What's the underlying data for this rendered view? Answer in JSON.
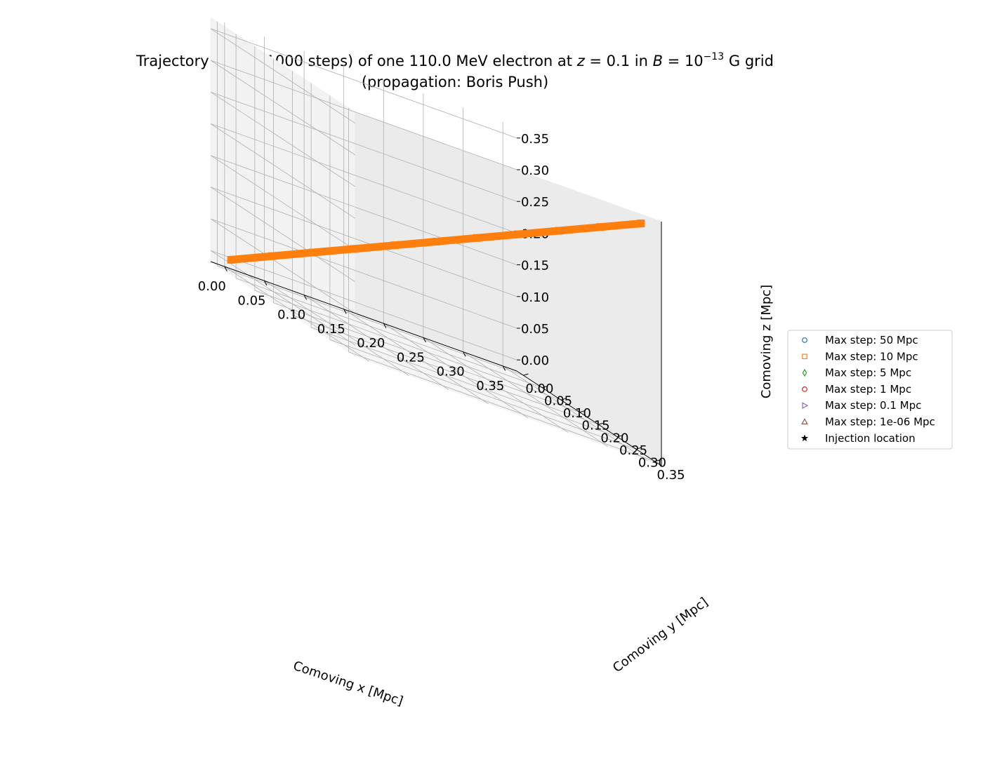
{
  "chart_data": {
    "type": "line",
    "projection": "3d",
    "title_parts": {
      "pre": "Trajectory (every 1000 steps) of one 110.0 MeV electron at ",
      "z_var": "z",
      "z_eq": " = 0.1 in ",
      "b_var": "B",
      "b_eq": " = 10",
      "b_exp": "−13",
      "post": " G grid"
    },
    "subtitle": "(propagation: Boris Push)",
    "xlabel": "Comoving x [Mpc]",
    "ylabel": "Comoving y [Mpc]",
    "zlabel": "Comoving z [Mpc]",
    "xlim": [
      -0.0175,
      0.3675
    ],
    "ylim": [
      -0.0175,
      0.3675
    ],
    "zlim": [
      -0.0175,
      0.3675
    ],
    "x_ticks": [
      "0.00",
      "0.05",
      "0.10",
      "0.15",
      "0.20",
      "0.25",
      "0.30",
      "0.35"
    ],
    "y_ticks": [
      "0.00",
      "0.05",
      "0.10",
      "0.15",
      "0.20",
      "0.25",
      "0.30",
      "0.35"
    ],
    "z_ticks": [
      "0.00",
      "0.05",
      "0.10",
      "0.15",
      "0.20",
      "0.25",
      "0.30",
      "0.35"
    ],
    "grid": true,
    "legend_position": "center-right",
    "series": [
      {
        "name": "Max step: 50 Mpc",
        "color": "#1f77b4",
        "marker": "circle",
        "x": [],
        "y": [],
        "z": []
      },
      {
        "name": "Max step: 10 Mpc",
        "color": "#ff7f0e",
        "marker": "square",
        "x": [
          0.0,
          0.035,
          0.07,
          0.105,
          0.14,
          0.175,
          0.21,
          0.245,
          0.28,
          0.315,
          0.35
        ],
        "y": [
          0.0,
          0.035,
          0.07,
          0.105,
          0.14,
          0.175,
          0.21,
          0.245,
          0.28,
          0.315,
          0.35
        ],
        "z": [
          0.0,
          0.035,
          0.07,
          0.105,
          0.14,
          0.175,
          0.21,
          0.245,
          0.28,
          0.315,
          0.35
        ]
      },
      {
        "name": "Max step: 5 Mpc",
        "color": "#2ca02c",
        "marker": "diamond",
        "x": [],
        "y": [],
        "z": []
      },
      {
        "name": "Max step: 1 Mpc",
        "color": "#d62728",
        "marker": "circle",
        "x": [],
        "y": [],
        "z": []
      },
      {
        "name": "Max step: 0.1 Mpc",
        "color": "#9467bd",
        "marker": "triangle-right",
        "x": [],
        "y": [],
        "z": []
      },
      {
        "name": "Max step: 1e-06 Mpc",
        "color": "#8c564b",
        "marker": "triangle-up",
        "x": [],
        "y": [],
        "z": []
      },
      {
        "name": "Injection location",
        "color": "#000000",
        "marker": "star",
        "x": [],
        "y": [],
        "z": []
      }
    ]
  }
}
